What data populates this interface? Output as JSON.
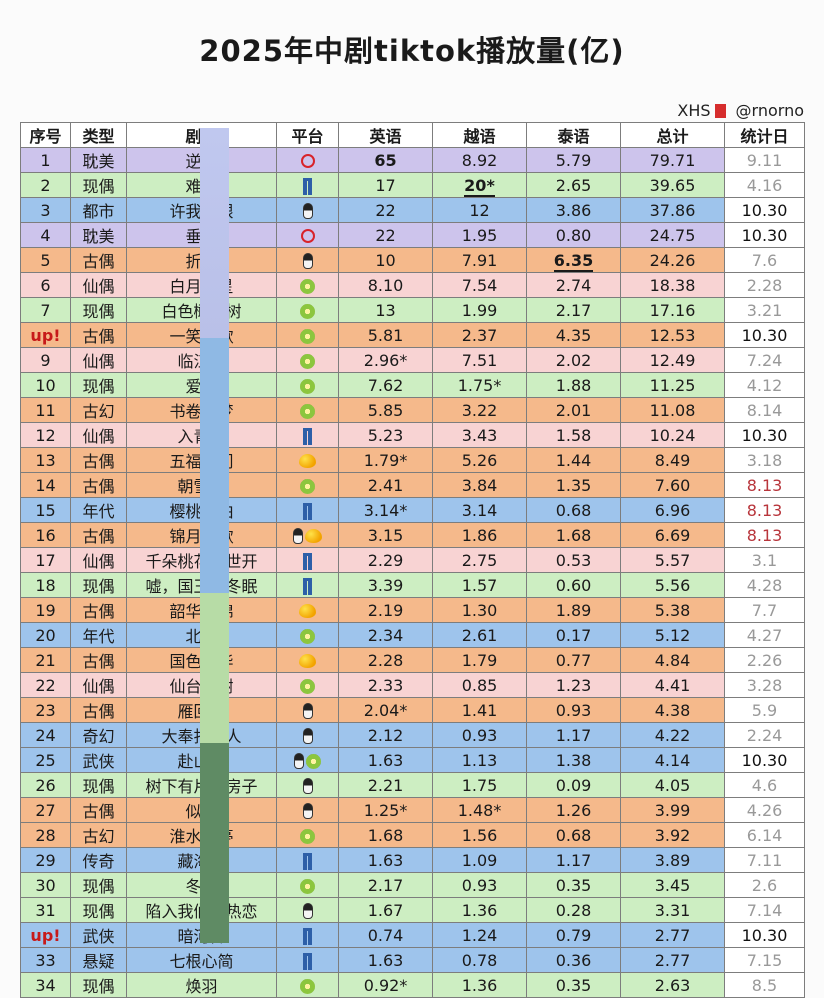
{
  "title": "2025年中剧tiktok播放量(亿)",
  "credit": {
    "text": "XHS",
    "handle": "@rnorno"
  },
  "chart_data": {
    "type": "table",
    "columns": [
      "序号",
      "类型",
      "剧名",
      "平台",
      "英语",
      "越语",
      "泰语",
      "总计",
      "统计日"
    ],
    "rows": [
      {
        "rank": "1",
        "genre": "耽美",
        "name": "逆爱",
        "platform": [
          "circle-icon"
        ],
        "en": "65",
        "vi": "8.92",
        "th": "5.79",
        "total": "79.71",
        "date": "9.11",
        "color": "purple",
        "en_bold": true
      },
      {
        "rank": "2",
        "genre": "现偶",
        "name": "难哄",
        "platform": [
          "jeans-icon"
        ],
        "en": "17",
        "vi": "20*",
        "th": "2.65",
        "total": "39.65",
        "date": "4.16",
        "color": "green",
        "vi_bold": true
      },
      {
        "rank": "3",
        "genre": "都市",
        "name": "许我耀眼",
        "platform": [
          "penguin-icon"
        ],
        "en": "22",
        "vi": "12",
        "th": "3.86",
        "total": "37.86",
        "date": "10.30",
        "color": "blue"
      },
      {
        "rank": "4",
        "genre": "耽美",
        "name": "垂涎",
        "platform": [
          "circle-icon"
        ],
        "en": "22",
        "vi": "1.95",
        "th": "0.80",
        "total": "24.75",
        "date": "10.30",
        "color": "purple"
      },
      {
        "rank": "5",
        "genre": "古偶",
        "name": "折腰",
        "platform": [
          "penguin-icon"
        ],
        "en": "10",
        "vi": "7.91",
        "th": "6.35",
        "total": "24.26",
        "date": "7.6",
        "color": "orange",
        "th_bold": true
      },
      {
        "rank": "6",
        "genre": "仙偶",
        "name": "白月梵星",
        "platform": [
          "kiwi-icon"
        ],
        "en": "8.10",
        "vi": "7.54",
        "th": "2.74",
        "total": "18.38",
        "date": "2.28",
        "color": "pink"
      },
      {
        "rank": "7",
        "genre": "现偶",
        "name": "白色橄榄树",
        "platform": [
          "kiwi-icon"
        ],
        "en": "13",
        "vi": "1.99",
        "th": "2.17",
        "total": "17.16",
        "date": "3.21",
        "color": "green"
      },
      {
        "rank": "up!",
        "genre": "古偶",
        "name": "一笑随歌",
        "platform": [
          "kiwi-icon"
        ],
        "en": "5.81",
        "vi": "2.37",
        "th": "4.35",
        "total": "12.53",
        "date": "10.30",
        "color": "orange",
        "up": true
      },
      {
        "rank": "9",
        "genre": "仙偶",
        "name": "临江仙",
        "platform": [
          "kiwi-icon"
        ],
        "en": "2.96*",
        "vi": "7.51",
        "th": "2.02",
        "total": "12.49",
        "date": "7.24",
        "color": "pink"
      },
      {
        "rank": "10",
        "genre": "现偶",
        "name": "爱你",
        "platform": [
          "kiwi-icon"
        ],
        "en": "7.62",
        "vi": "1.75*",
        "th": "1.88",
        "total": "11.25",
        "date": "4.12",
        "color": "green"
      },
      {
        "rank": "11",
        "genre": "古幻",
        "name": "书卷一梦",
        "platform": [
          "kiwi-icon"
        ],
        "en": "5.85",
        "vi": "3.22",
        "th": "2.01",
        "total": "11.08",
        "date": "8.14",
        "color": "orange"
      },
      {
        "rank": "12",
        "genre": "仙偶",
        "name": "入青云",
        "platform": [
          "jeans-icon"
        ],
        "en": "5.23",
        "vi": "3.43",
        "th": "1.58",
        "total": "10.24",
        "date": "10.30",
        "color": "pink"
      },
      {
        "rank": "13",
        "genre": "古偶",
        "name": "五福临门",
        "platform": [
          "mango-icon"
        ],
        "en": "1.79*",
        "vi": "5.26",
        "th": "1.44",
        "total": "8.49",
        "date": "3.18",
        "color": "orange"
      },
      {
        "rank": "14",
        "genre": "古偶",
        "name": "朝雪录",
        "platform": [
          "kiwi-icon"
        ],
        "en": "2.41",
        "vi": "3.84",
        "th": "1.35",
        "total": "7.60",
        "date": "8.13",
        "color": "orange",
        "date_red": true
      },
      {
        "rank": "15",
        "genre": "年代",
        "name": "樱桃琥珀",
        "platform": [
          "jeans-icon"
        ],
        "en": "3.14*",
        "vi": "3.14",
        "th": "0.68",
        "total": "6.96",
        "date": "8.13",
        "color": "blue",
        "date_red": true
      },
      {
        "rank": "16",
        "genre": "古偶",
        "name": "锦月如歌",
        "platform": [
          "penguin-icon",
          "mango-icon"
        ],
        "en": "3.15",
        "vi": "1.86",
        "th": "1.68",
        "total": "6.69",
        "date": "8.13",
        "color": "orange",
        "date_red": true
      },
      {
        "rank": "17",
        "genre": "仙偶",
        "name": "千朵桃花一世开",
        "platform": [
          "jeans-icon"
        ],
        "en": "2.29",
        "vi": "2.75",
        "th": "0.53",
        "total": "5.57",
        "date": "3.1",
        "color": "pink"
      },
      {
        "rank": "18",
        "genre": "现偶",
        "name": "嘘，国王在冬眠",
        "platform": [
          "jeans-icon"
        ],
        "en": "3.39",
        "vi": "1.57",
        "th": "0.60",
        "total": "5.56",
        "date": "4.28",
        "color": "green"
      },
      {
        "rank": "19",
        "genre": "古偶",
        "name": "韶华若锦",
        "platform": [
          "mango-icon"
        ],
        "en": "2.19",
        "vi": "1.30",
        "th": "1.89",
        "total": "5.38",
        "date": "7.7",
        "color": "orange"
      },
      {
        "rank": "20",
        "genre": "年代",
        "name": "北上",
        "platform": [
          "kiwi-icon"
        ],
        "en": "2.34",
        "vi": "2.61",
        "th": "0.17",
        "total": "5.12",
        "date": "4.27",
        "color": "blue"
      },
      {
        "rank": "21",
        "genre": "古偶",
        "name": "国色芳华",
        "platform": [
          "mango-icon"
        ],
        "en": "2.28",
        "vi": "1.79",
        "th": "0.77",
        "total": "4.84",
        "date": "2.26",
        "color": "orange"
      },
      {
        "rank": "22",
        "genre": "仙偶",
        "name": "仙台有树",
        "platform": [
          "kiwi-icon"
        ],
        "en": "2.33",
        "vi": "0.85",
        "th": "1.23",
        "total": "4.41",
        "date": "3.28",
        "color": "pink"
      },
      {
        "rank": "23",
        "genre": "古偶",
        "name": "雁回时",
        "platform": [
          "penguin-icon"
        ],
        "en": "2.04*",
        "vi": "1.41",
        "th": "0.93",
        "total": "4.38",
        "date": "5.9",
        "color": "orange"
      },
      {
        "rank": "24",
        "genre": "奇幻",
        "name": "大奉打更人",
        "platform": [
          "penguin-icon"
        ],
        "en": "2.12",
        "vi": "0.93",
        "th": "1.17",
        "total": "4.22",
        "date": "2.24",
        "color": "blue"
      },
      {
        "rank": "25",
        "genre": "武侠",
        "name": "赴山海",
        "platform": [
          "penguin-icon",
          "kiwi-icon"
        ],
        "en": "1.63",
        "vi": "1.13",
        "th": "1.38",
        "total": "4.14",
        "date": "10.30",
        "color": "blue"
      },
      {
        "rank": "26",
        "genre": "现偶",
        "name": "树下有片红房子",
        "platform": [
          "penguin-icon"
        ],
        "en": "2.21",
        "vi": "1.75",
        "th": "0.09",
        "total": "4.05",
        "date": "4.6",
        "color": "green"
      },
      {
        "rank": "27",
        "genre": "古偶",
        "name": "似锦",
        "platform": [
          "penguin-icon"
        ],
        "en": "1.25*",
        "vi": "1.48*",
        "th": "1.26",
        "total": "3.99",
        "date": "4.26",
        "color": "orange"
      },
      {
        "rank": "28",
        "genre": "古幻",
        "name": "淮水竹亭",
        "platform": [
          "kiwi-icon"
        ],
        "en": "1.68",
        "vi": "1.56",
        "th": "0.68",
        "total": "3.92",
        "date": "6.14",
        "color": "orange"
      },
      {
        "rank": "29",
        "genre": "传奇",
        "name": "藏海传",
        "platform": [
          "jeans-icon"
        ],
        "en": "1.63",
        "vi": "1.09",
        "th": "1.17",
        "total": "3.89",
        "date": "7.11",
        "color": "blue"
      },
      {
        "rank": "30",
        "genre": "现偶",
        "name": "冬至",
        "platform": [
          "kiwi-icon"
        ],
        "en": "2.17",
        "vi": "0.93",
        "th": "0.35",
        "total": "3.45",
        "date": "2.6",
        "color": "green"
      },
      {
        "rank": "31",
        "genre": "现偶",
        "name": "陷入我们的热恋",
        "platform": [
          "penguin-icon"
        ],
        "en": "1.67",
        "vi": "1.36",
        "th": "0.28",
        "total": "3.31",
        "date": "7.14",
        "color": "green"
      },
      {
        "rank": "up!",
        "genre": "武侠",
        "name": "暗河传",
        "platform": [
          "jeans-icon"
        ],
        "en": "0.74",
        "vi": "1.24",
        "th": "0.79",
        "total": "2.77",
        "date": "10.30",
        "color": "blue",
        "up": true
      },
      {
        "rank": "33",
        "genre": "悬疑",
        "name": "七根心简",
        "platform": [
          "jeans-icon"
        ],
        "en": "1.63",
        "vi": "0.78",
        "th": "0.36",
        "total": "2.77",
        "date": "7.15",
        "color": "blue"
      },
      {
        "rank": "34",
        "genre": "现偶",
        "name": "焕羽",
        "platform": [
          "kiwi-icon"
        ],
        "en": "0.92*",
        "vi": "1.36",
        "th": "0.35",
        "total": "2.63",
        "date": "8.5",
        "color": "green"
      }
    ]
  }
}
